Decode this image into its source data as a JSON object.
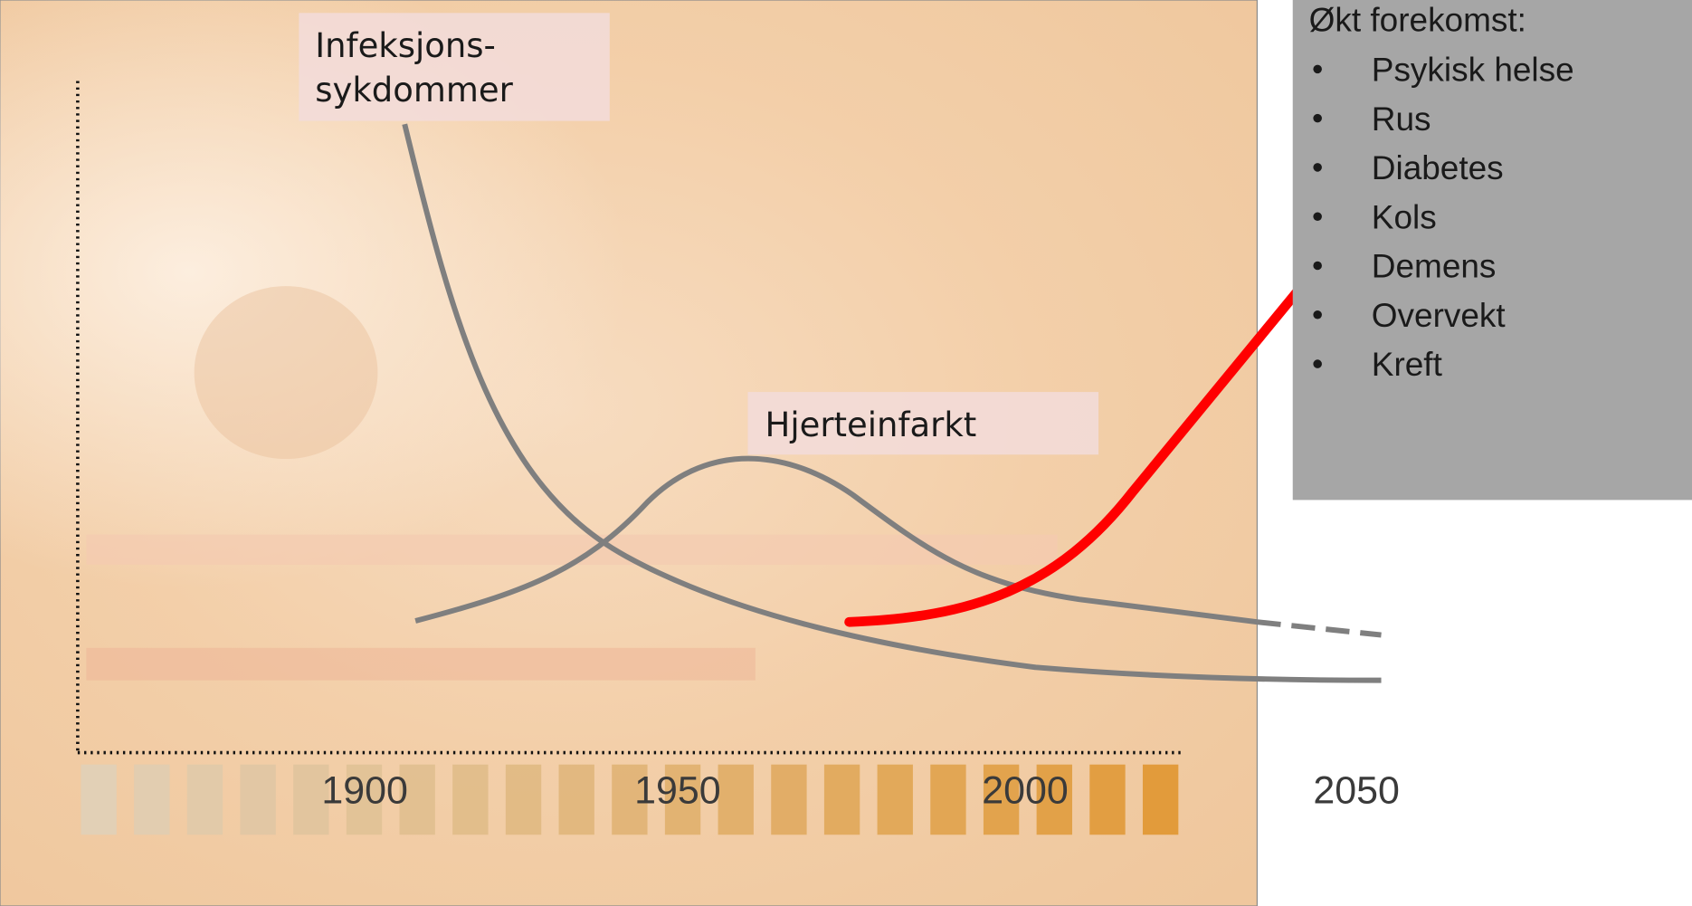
{
  "diagram": {
    "labels": [
      {
        "lines": [
          "Infeksjons-",
          "sykdommer"
        ]
      },
      {
        "lines": [
          "Hjerteinfarkt"
        ]
      }
    ],
    "axis_labels": [
      "1900",
      "1950",
      "2000",
      "2050"
    ]
  },
  "sidebar": {
    "title": "Økt forekomst:",
    "items": [
      "Psykisk helse",
      "Rus",
      "Diabetes",
      "Kols",
      "Demens",
      "Overvekt",
      "Kreft"
    ]
  }
}
